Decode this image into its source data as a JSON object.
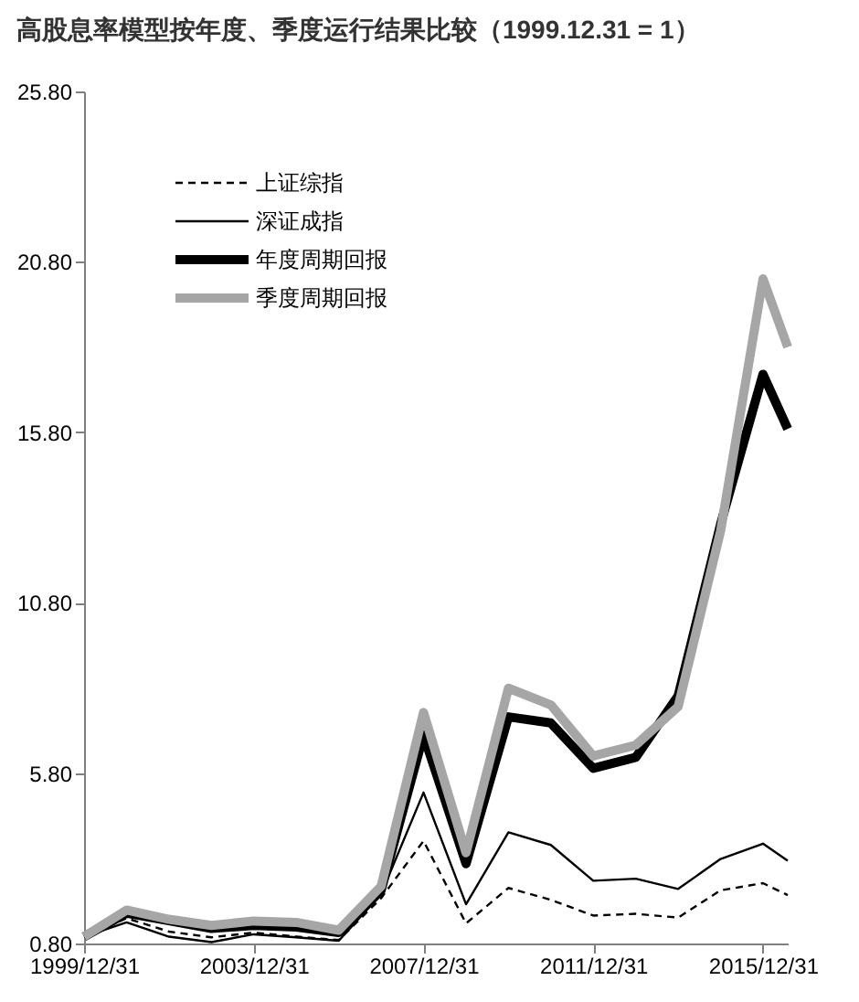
{
  "chart_data": {
    "type": "line",
    "title": "高股息率模型按年度、季度运行结果比较（1999.12.31 = 1）",
    "x": [
      "1999-12-31",
      "2000-12-31",
      "2001-12-31",
      "2002-12-31",
      "2003-12-31",
      "2004-12-31",
      "2005-12-31",
      "2006-12-31",
      "2007-12-31",
      "2008-12-31",
      "2009-12-31",
      "2010-12-31",
      "2011-12-31",
      "2012-12-31",
      "2013-12-31",
      "2014-12-31",
      "2015-12-31",
      "2016-07-31"
    ],
    "series": [
      {
        "name": "上证综指",
        "color": "#000000",
        "line_style": "dashed",
        "values": [
          1.0,
          1.54,
          1.15,
          0.98,
          1.12,
          1.0,
          0.9,
          2.13,
          3.81,
          1.39,
          2.43,
          2.08,
          1.62,
          1.67,
          1.56,
          2.36,
          2.57,
          2.22
        ]
      },
      {
        "name": "深证成指",
        "color": "#000000",
        "line_style": "solid",
        "values": [
          1.0,
          1.42,
          1.0,
          0.84,
          1.07,
          0.98,
          0.88,
          2.25,
          5.23,
          1.95,
          4.06,
          3.69,
          2.64,
          2.7,
          2.4,
          3.28,
          3.73,
          3.23
        ]
      },
      {
        "name": "年度周期回报",
        "color": "#000000",
        "line_style": "solid",
        "values": [
          1.0,
          1.69,
          1.47,
          1.24,
          1.33,
          1.28,
          1.12,
          2.36,
          6.92,
          3.14,
          7.45,
          7.27,
          5.94,
          6.26,
          8.07,
          13.1,
          17.5,
          15.9
        ]
      },
      {
        "name": "季度周期回报",
        "color": "#a6a6a6",
        "line_style": "solid",
        "values": [
          1.0,
          1.78,
          1.51,
          1.33,
          1.46,
          1.42,
          1.19,
          2.48,
          7.58,
          3.46,
          8.29,
          7.8,
          6.3,
          6.62,
          7.75,
          12.9,
          20.3,
          18.3
        ]
      }
    ],
    "xlim": [
      "1999-12-31",
      "2016-07-31"
    ],
    "xticks": [
      {
        "value": "1999-12-31",
        "label": "1999/12/31"
      },
      {
        "value": "2003-12-31",
        "label": "2003/12/31"
      },
      {
        "value": "2007-12-31",
        "label": "2007/12/31"
      },
      {
        "value": "2011-12-31",
        "label": "2011/12/31"
      },
      {
        "value": "2015-12-31",
        "label": "2015/12/31"
      }
    ],
    "ylim": [
      0.8,
      25.8
    ],
    "yticks": [
      {
        "value": 0.8,
        "label": "0.80"
      },
      {
        "value": 5.8,
        "label": "5.80"
      },
      {
        "value": 10.8,
        "label": "10.80"
      },
      {
        "value": 15.8,
        "label": "15.80"
      },
      {
        "value": 20.8,
        "label": "20.80"
      },
      {
        "value": 25.8,
        "label": "25.80"
      }
    ],
    "grid": false,
    "legend": "top left",
    "marker": "none"
  }
}
